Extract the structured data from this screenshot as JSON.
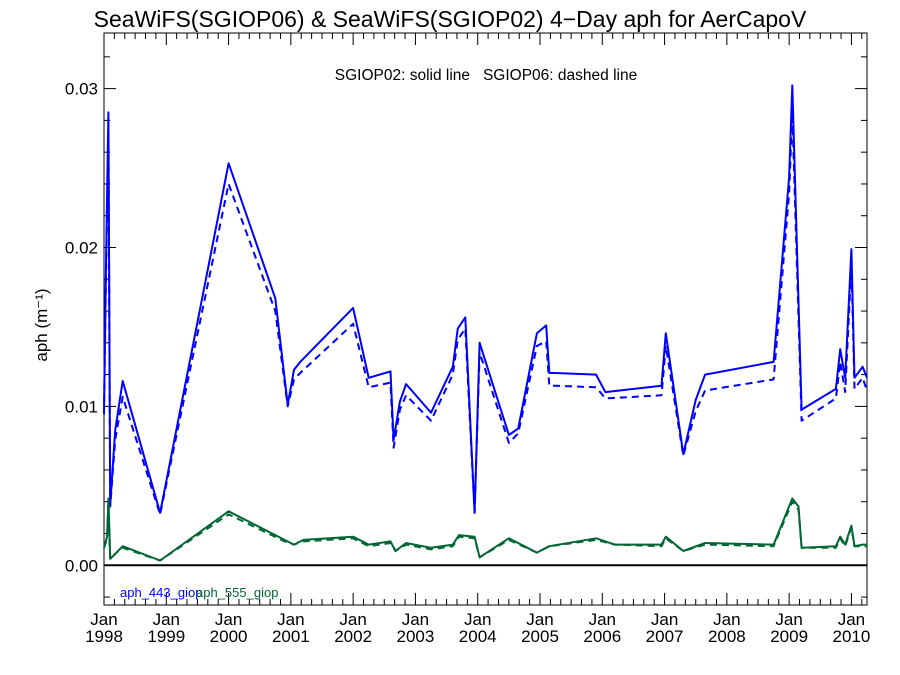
{
  "chart_data": {
    "type": "line",
    "title": "SeaWiFS(SGIOP06) & SeaWiFS(SGIOP02) 4−Day aph for AerCapoV",
    "annotation": "SGIOP02: solid line   SGIOP06: dashed line",
    "ylabel": "aph (m⁻¹)",
    "xlim": [
      1998.0,
      2010.25
    ],
    "ylim": [
      -0.0025,
      0.0335
    ],
    "yticks": [
      "0.00",
      "0.01",
      "0.02",
      "0.03"
    ],
    "ytick_values": [
      0.0,
      0.01,
      0.02,
      0.03
    ],
    "xtick_month": "Jan",
    "xtick_years": [
      "1998",
      "1999",
      "2000",
      "2001",
      "2002",
      "2003",
      "2004",
      "2005",
      "2006",
      "2007",
      "2008",
      "2009",
      "2010"
    ],
    "zero_line": true,
    "colors": {
      "aph_443_giop": "#0000ff",
      "aph_555_giop": "#006633"
    },
    "series": [
      {
        "name": "aph_443_giop",
        "style": "solid",
        "color": "#0000ff",
        "x": [
          1998.0,
          1998.03,
          1998.07,
          1998.1,
          1998.18,
          1998.3,
          1998.9,
          2000.0,
          2000.75,
          2000.95,
          2001.05,
          2001.15,
          2002.0,
          2002.25,
          2002.6,
          2002.65,
          2002.75,
          2002.85,
          2003.25,
          2003.6,
          2003.68,
          2003.8,
          2003.95,
          2004.03,
          2004.5,
          2004.65,
          2004.95,
          2005.1,
          2005.15,
          2005.25,
          2005.9,
          2006.05,
          2006.95,
          2007.02,
          2007.3,
          2007.5,
          2007.65,
          2008.75,
          2009.0,
          2009.05,
          2009.2,
          2009.75,
          2009.82,
          2009.9,
          2010.0,
          2010.05,
          2010.18,
          2010.25
        ],
        "y": [
          0.0098,
          0.0185,
          0.0285,
          0.0038,
          0.0085,
          0.0116,
          0.0033,
          0.0253,
          0.0168,
          0.0101,
          0.0123,
          0.0128,
          0.0162,
          0.0118,
          0.0122,
          0.0079,
          0.0103,
          0.0114,
          0.0096,
          0.0125,
          0.0149,
          0.0156,
          0.0033,
          0.014,
          0.0082,
          0.0086,
          0.0146,
          0.0151,
          0.0121,
          0.0121,
          0.012,
          0.0109,
          0.0113,
          0.0146,
          0.007,
          0.0104,
          0.012,
          0.0128,
          0.0244,
          0.0302,
          0.0098,
          0.0111,
          0.0136,
          0.0118,
          0.0199,
          0.0118,
          0.0125,
          0.0118
        ]
      },
      {
        "name": "aph_443_giop",
        "style": "dashed",
        "color": "#0000ff",
        "x": [
          1998.0,
          1998.03,
          1998.07,
          1998.1,
          1998.18,
          1998.3,
          1998.9,
          2000.0,
          2000.75,
          2000.95,
          2001.05,
          2001.15,
          2002.0,
          2002.25,
          2002.6,
          2002.65,
          2002.75,
          2002.85,
          2003.25,
          2003.6,
          2003.68,
          2003.8,
          2003.95,
          2004.03,
          2004.5,
          2004.65,
          2004.95,
          2005.1,
          2005.15,
          2005.25,
          2005.9,
          2006.05,
          2006.95,
          2007.02,
          2007.3,
          2007.5,
          2007.65,
          2008.75,
          2009.0,
          2009.05,
          2009.2,
          2009.75,
          2009.82,
          2009.9,
          2010.0,
          2010.05,
          2010.18,
          2010.25
        ],
        "y": [
          0.0095,
          0.0178,
          0.0275,
          0.0037,
          0.0079,
          0.0106,
          0.0032,
          0.024,
          0.016,
          0.01,
          0.0117,
          0.0121,
          0.0152,
          0.0112,
          0.0115,
          0.0074,
          0.0098,
          0.0107,
          0.0091,
          0.012,
          0.0142,
          0.0149,
          0.0033,
          0.0134,
          0.0077,
          0.0083,
          0.0138,
          0.0141,
          0.0113,
          0.0113,
          0.0112,
          0.0105,
          0.0107,
          0.0138,
          0.0069,
          0.0097,
          0.011,
          0.0117,
          0.0234,
          0.0285,
          0.0091,
          0.0105,
          0.0128,
          0.0109,
          0.019,
          0.0111,
          0.0118,
          0.011
        ]
      },
      {
        "name": "aph_555_giop",
        "style": "solid",
        "color": "#006633",
        "x": [
          1998.0,
          1998.05,
          1998.07,
          1998.1,
          1998.2,
          1998.3,
          1998.9,
          2000.0,
          2000.9,
          2001.05,
          2001.2,
          2002.0,
          2002.25,
          2002.6,
          2002.68,
          2002.85,
          2003.25,
          2003.6,
          2003.7,
          2003.95,
          2004.03,
          2004.5,
          2004.95,
          2005.15,
          2005.9,
          2006.2,
          2006.95,
          2007.02,
          2007.3,
          2007.65,
          2008.75,
          2009.05,
          2009.15,
          2009.2,
          2009.75,
          2009.82,
          2009.9,
          2010.0,
          2010.05,
          2010.18,
          2010.25
        ],
        "y": [
          0.0011,
          0.0018,
          0.0042,
          0.0004,
          0.0008,
          0.0012,
          0.0003,
          0.0034,
          0.0016,
          0.0013,
          0.0016,
          0.0018,
          0.0013,
          0.0015,
          0.0009,
          0.0014,
          0.0011,
          0.0013,
          0.0019,
          0.0018,
          0.0005,
          0.0017,
          0.0008,
          0.0012,
          0.0017,
          0.0013,
          0.0013,
          0.0018,
          0.0009,
          0.0014,
          0.0013,
          0.0042,
          0.0037,
          0.0011,
          0.0012,
          0.0018,
          0.0013,
          0.0025,
          0.0012,
          0.0013,
          0.0013
        ]
      },
      {
        "name": "aph_555_giop",
        "style": "dashed",
        "color": "#006633",
        "x": [
          1998.0,
          1998.05,
          1998.07,
          1998.1,
          1998.2,
          1998.3,
          1998.9,
          2000.0,
          2000.9,
          2001.05,
          2001.2,
          2002.0,
          2002.25,
          2002.6,
          2002.68,
          2002.85,
          2003.25,
          2003.6,
          2003.7,
          2003.95,
          2004.03,
          2004.5,
          2004.95,
          2005.15,
          2005.9,
          2006.2,
          2006.95,
          2007.02,
          2007.3,
          2007.65,
          2008.75,
          2009.05,
          2009.15,
          2009.2,
          2009.75,
          2009.82,
          2009.9,
          2010.0,
          2010.05,
          2010.18,
          2010.25
        ],
        "y": [
          0.0011,
          0.0017,
          0.004,
          0.0004,
          0.0008,
          0.0011,
          0.0003,
          0.0032,
          0.0015,
          0.0013,
          0.0015,
          0.0017,
          0.0012,
          0.0014,
          0.0009,
          0.0013,
          0.001,
          0.0012,
          0.0018,
          0.0017,
          0.0005,
          0.0016,
          0.0008,
          0.0012,
          0.0016,
          0.0013,
          0.0012,
          0.0017,
          0.0009,
          0.0013,
          0.0012,
          0.004,
          0.0035,
          0.0011,
          0.0011,
          0.0017,
          0.0012,
          0.0024,
          0.0012,
          0.0012,
          0.0012
        ]
      }
    ],
    "legend": [
      {
        "label": "aph_443_giop",
        "color": "#0000ff"
      },
      {
        "label": "aph_555_giop",
        "color": "#006633"
      }
    ]
  }
}
